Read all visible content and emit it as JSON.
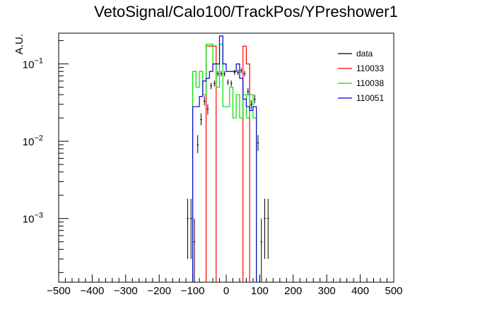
{
  "chart_data": {
    "type": "histogram",
    "title": "VetoSignal/Calo100/TrackPos/YPreshower1",
    "xlabel": "",
    "ylabel": "A.U.",
    "xlim": [
      -500,
      500
    ],
    "ylim": [
      0.00015,
      0.25
    ],
    "yscale": "log",
    "grid": false,
    "legend_position": "top-right",
    "x_ticks": [
      -500,
      -400,
      -300,
      -200,
      -100,
      0,
      100,
      200,
      300,
      400,
      500
    ],
    "y_ticks": [
      {
        "value": 0.1,
        "base": "10",
        "exp": "−1"
      },
      {
        "value": 0.01,
        "base": "10",
        "exp": "−2"
      },
      {
        "value": 0.001,
        "base": "10",
        "exp": "−3"
      }
    ],
    "bin_width": 10,
    "series": [
      {
        "name": "110033",
        "color": "#ff0000",
        "style": "step",
        "bins": [
          {
            "lo": -60,
            "hi": -50,
            "y": 0.17
          },
          {
            "lo": -50,
            "hi": -40,
            "y": 0.17
          },
          {
            "lo": -40,
            "hi": -30,
            "y": 0.17
          },
          {
            "lo": 50,
            "hi": 60,
            "y": 0.17
          },
          {
            "lo": 60,
            "hi": 70,
            "y": 0.1
          }
        ]
      },
      {
        "name": "110038",
        "color": "#00dd00",
        "style": "step",
        "bins": [
          {
            "lo": -100,
            "hi": -90,
            "y": 0.08
          },
          {
            "lo": -90,
            "hi": -80,
            "y": 0.05
          },
          {
            "lo": -80,
            "hi": -70,
            "y": 0.08
          },
          {
            "lo": -70,
            "hi": -60,
            "y": 0.04
          },
          {
            "lo": -60,
            "hi": -50,
            "y": 0.18
          },
          {
            "lo": -50,
            "hi": -40,
            "y": 0.18
          },
          {
            "lo": -40,
            "hi": -30,
            "y": 0.1
          },
          {
            "lo": -30,
            "hi": -20,
            "y": 0.05
          },
          {
            "lo": -20,
            "hi": -10,
            "y": 0.18
          },
          {
            "lo": -10,
            "hi": 0,
            "y": 0.028
          },
          {
            "lo": 0,
            "hi": 10,
            "y": 0.028
          },
          {
            "lo": 10,
            "hi": 20,
            "y": 0.05
          },
          {
            "lo": 20,
            "hi": 30,
            "y": 0.02
          },
          {
            "lo": 30,
            "hi": 40,
            "y": 0.04
          },
          {
            "lo": 40,
            "hi": 50,
            "y": 0.02
          },
          {
            "lo": 50,
            "hi": 60,
            "y": 0.04
          },
          {
            "lo": 60,
            "hi": 70,
            "y": 0.02
          },
          {
            "lo": 70,
            "hi": 80,
            "y": 0.04
          },
          {
            "lo": 80,
            "hi": 90,
            "y": 0.02
          }
        ]
      },
      {
        "name": "110051",
        "color": "#0000cc",
        "style": "step",
        "bins": [
          {
            "lo": -100,
            "hi": -90,
            "y": 0.028
          },
          {
            "lo": -90,
            "hi": -80,
            "y": 0.028
          },
          {
            "lo": -80,
            "hi": -70,
            "y": 0.038
          },
          {
            "lo": -70,
            "hi": -60,
            "y": 0.06
          },
          {
            "lo": -60,
            "hi": -50,
            "y": 0.065
          },
          {
            "lo": -50,
            "hi": -40,
            "y": 0.08
          },
          {
            "lo": -40,
            "hi": -30,
            "y": 0.1
          },
          {
            "lo": -30,
            "hi": -20,
            "y": 0.1
          },
          {
            "lo": -20,
            "hi": -10,
            "y": 0.23
          },
          {
            "lo": -10,
            "hi": 0,
            "y": 0.1
          },
          {
            "lo": 0,
            "hi": 10,
            "y": 0.08
          },
          {
            "lo": 10,
            "hi": 20,
            "y": 0.08
          },
          {
            "lo": 20,
            "hi": 30,
            "y": 0.08
          },
          {
            "lo": 30,
            "hi": 40,
            "y": 0.1
          },
          {
            "lo": 40,
            "hi": 50,
            "y": 0.065
          },
          {
            "lo": 50,
            "hi": 60,
            "y": 0.035
          },
          {
            "lo": 60,
            "hi": 70,
            "y": 0.028
          },
          {
            "lo": 70,
            "hi": 80,
            "y": 0.025
          },
          {
            "lo": 80,
            "hi": 90,
            "y": 0.028
          }
        ]
      },
      {
        "name": "data",
        "color": "#000000",
        "style": "errorbar",
        "points": [
          {
            "x": -115,
            "y": 0.001,
            "lo": 0.0003,
            "hi": 0.0018
          },
          {
            "x": -105,
            "y": 0.001,
            "lo": 0.0003,
            "hi": 0.0018
          },
          {
            "x": -95,
            "y": 0.0005,
            "lo": 0.00015,
            "hi": 0.001
          },
          {
            "x": -85,
            "y": 0.009,
            "lo": 0.007,
            "hi": 0.012
          },
          {
            "x": -75,
            "y": 0.019,
            "lo": 0.016,
            "hi": 0.023
          },
          {
            "x": -65,
            "y": 0.033,
            "lo": 0.029,
            "hi": 0.038
          },
          {
            "x": -55,
            "y": 0.026,
            "lo": 0.022,
            "hi": 0.03
          },
          {
            "x": -45,
            "y": 0.052,
            "lo": 0.047,
            "hi": 0.057
          },
          {
            "x": -35,
            "y": 0.056,
            "lo": 0.051,
            "hi": 0.061
          },
          {
            "x": -25,
            "y": 0.075,
            "lo": 0.069,
            "hi": 0.081
          },
          {
            "x": -15,
            "y": 0.075,
            "lo": 0.069,
            "hi": 0.081
          },
          {
            "x": -5,
            "y": 0.075,
            "lo": 0.069,
            "hi": 0.081
          },
          {
            "x": 5,
            "y": 0.058,
            "lo": 0.053,
            "hi": 0.063
          },
          {
            "x": 15,
            "y": 0.056,
            "lo": 0.051,
            "hi": 0.061
          },
          {
            "x": 25,
            "y": 0.078,
            "lo": 0.072,
            "hi": 0.084
          },
          {
            "x": 35,
            "y": 0.078,
            "lo": 0.072,
            "hi": 0.084
          },
          {
            "x": 45,
            "y": 0.082,
            "lo": 0.076,
            "hi": 0.088
          },
          {
            "x": 55,
            "y": 0.075,
            "lo": 0.069,
            "hi": 0.081
          },
          {
            "x": 65,
            "y": 0.044,
            "lo": 0.039,
            "hi": 0.049
          },
          {
            "x": 75,
            "y": 0.03,
            "lo": 0.026,
            "hi": 0.034
          },
          {
            "x": 85,
            "y": 0.035,
            "lo": 0.031,
            "hi": 0.04
          },
          {
            "x": 95,
            "y": 0.0095,
            "lo": 0.0075,
            "hi": 0.012
          },
          {
            "x": 105,
            "y": 0.0005,
            "lo": 0.00015,
            "hi": 0.001
          },
          {
            "x": 115,
            "y": 0.001,
            "lo": 0.0003,
            "hi": 0.0018
          },
          {
            "x": 125,
            "y": 0.001,
            "lo": 0.0003,
            "hi": 0.0018
          }
        ]
      }
    ],
    "legend": [
      {
        "label": "data",
        "color": "#000000"
      },
      {
        "label": "110033",
        "color": "#ff0000"
      },
      {
        "label": "110038",
        "color": "#00dd00"
      },
      {
        "label": "110051",
        "color": "#0000cc"
      }
    ]
  }
}
